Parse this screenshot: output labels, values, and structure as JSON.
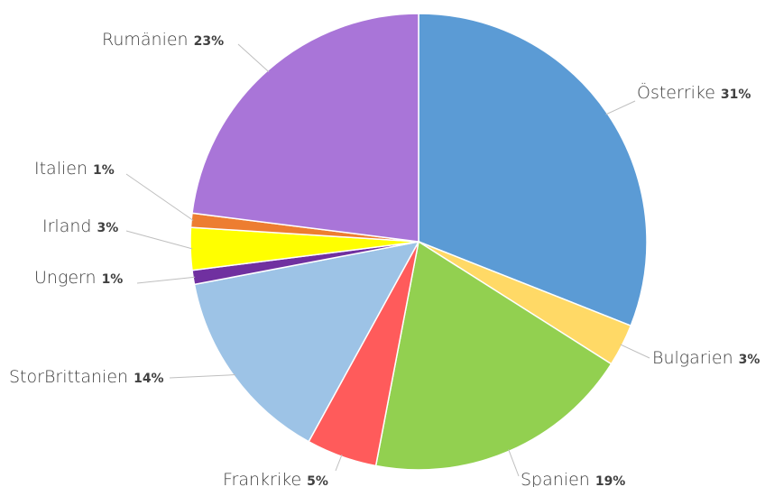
{
  "chart_data": {
    "type": "pie",
    "categories": [
      "Österrike",
      "Bulgarien",
      "Spanien",
      "Frankrike",
      "StorBrittanien",
      "Ungern",
      "Irland",
      "Italien",
      "Rumänien"
    ],
    "values": [
      31,
      3,
      19,
      5,
      14,
      1,
      3,
      1,
      23
    ],
    "value_labels": [
      "31%",
      "3%",
      "19%",
      "5%",
      "14%",
      "1%",
      "3%",
      "1%",
      "23%"
    ],
    "colors": [
      "#5b9bd5",
      "#ffd966",
      "#92d050",
      "#ff5b5b",
      "#9dc3e6",
      "#7030a0",
      "#ffff00",
      "#ed7d31",
      "#a975d8"
    ]
  }
}
